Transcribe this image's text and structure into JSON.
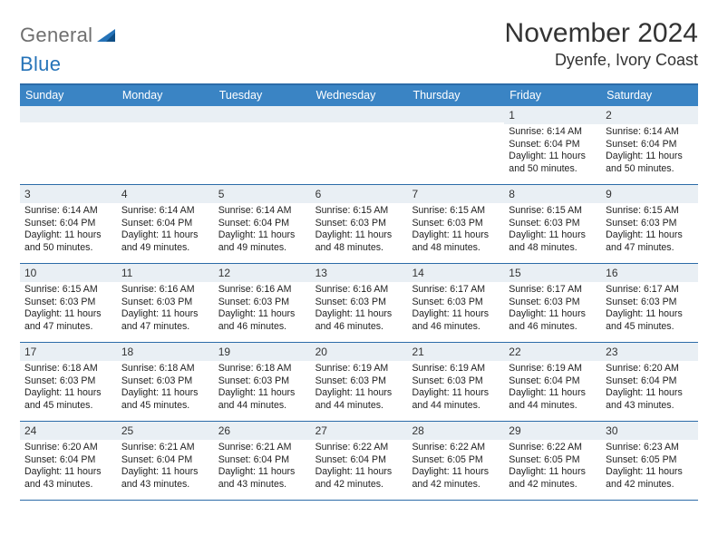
{
  "logo": {
    "gray": "General",
    "blue": "Blue"
  },
  "title": "November 2024",
  "location": "Dyenfe, Ivory Coast",
  "dow": [
    "Sunday",
    "Monday",
    "Tuesday",
    "Wednesday",
    "Thursday",
    "Friday",
    "Saturday"
  ],
  "colors": {
    "header_bar": "#3a84c4",
    "rule": "#2c6ba8",
    "daynum_bg": "#e9eff4",
    "logo_gray": "#6f6f6f",
    "logo_blue": "#2573b8"
  },
  "weeks": [
    [
      {
        "n": "",
        "sr": "",
        "ss": "",
        "d1": "",
        "d2": ""
      },
      {
        "n": "",
        "sr": "",
        "ss": "",
        "d1": "",
        "d2": ""
      },
      {
        "n": "",
        "sr": "",
        "ss": "",
        "d1": "",
        "d2": ""
      },
      {
        "n": "",
        "sr": "",
        "ss": "",
        "d1": "",
        "d2": ""
      },
      {
        "n": "",
        "sr": "",
        "ss": "",
        "d1": "",
        "d2": ""
      },
      {
        "n": "1",
        "sr": "Sunrise: 6:14 AM",
        "ss": "Sunset: 6:04 PM",
        "d1": "Daylight: 11 hours",
        "d2": "and 50 minutes."
      },
      {
        "n": "2",
        "sr": "Sunrise: 6:14 AM",
        "ss": "Sunset: 6:04 PM",
        "d1": "Daylight: 11 hours",
        "d2": "and 50 minutes."
      }
    ],
    [
      {
        "n": "3",
        "sr": "Sunrise: 6:14 AM",
        "ss": "Sunset: 6:04 PM",
        "d1": "Daylight: 11 hours",
        "d2": "and 50 minutes."
      },
      {
        "n": "4",
        "sr": "Sunrise: 6:14 AM",
        "ss": "Sunset: 6:04 PM",
        "d1": "Daylight: 11 hours",
        "d2": "and 49 minutes."
      },
      {
        "n": "5",
        "sr": "Sunrise: 6:14 AM",
        "ss": "Sunset: 6:04 PM",
        "d1": "Daylight: 11 hours",
        "d2": "and 49 minutes."
      },
      {
        "n": "6",
        "sr": "Sunrise: 6:15 AM",
        "ss": "Sunset: 6:03 PM",
        "d1": "Daylight: 11 hours",
        "d2": "and 48 minutes."
      },
      {
        "n": "7",
        "sr": "Sunrise: 6:15 AM",
        "ss": "Sunset: 6:03 PM",
        "d1": "Daylight: 11 hours",
        "d2": "and 48 minutes."
      },
      {
        "n": "8",
        "sr": "Sunrise: 6:15 AM",
        "ss": "Sunset: 6:03 PM",
        "d1": "Daylight: 11 hours",
        "d2": "and 48 minutes."
      },
      {
        "n": "9",
        "sr": "Sunrise: 6:15 AM",
        "ss": "Sunset: 6:03 PM",
        "d1": "Daylight: 11 hours",
        "d2": "and 47 minutes."
      }
    ],
    [
      {
        "n": "10",
        "sr": "Sunrise: 6:15 AM",
        "ss": "Sunset: 6:03 PM",
        "d1": "Daylight: 11 hours",
        "d2": "and 47 minutes."
      },
      {
        "n": "11",
        "sr": "Sunrise: 6:16 AM",
        "ss": "Sunset: 6:03 PM",
        "d1": "Daylight: 11 hours",
        "d2": "and 47 minutes."
      },
      {
        "n": "12",
        "sr": "Sunrise: 6:16 AM",
        "ss": "Sunset: 6:03 PM",
        "d1": "Daylight: 11 hours",
        "d2": "and 46 minutes."
      },
      {
        "n": "13",
        "sr": "Sunrise: 6:16 AM",
        "ss": "Sunset: 6:03 PM",
        "d1": "Daylight: 11 hours",
        "d2": "and 46 minutes."
      },
      {
        "n": "14",
        "sr": "Sunrise: 6:17 AM",
        "ss": "Sunset: 6:03 PM",
        "d1": "Daylight: 11 hours",
        "d2": "and 46 minutes."
      },
      {
        "n": "15",
        "sr": "Sunrise: 6:17 AM",
        "ss": "Sunset: 6:03 PM",
        "d1": "Daylight: 11 hours",
        "d2": "and 46 minutes."
      },
      {
        "n": "16",
        "sr": "Sunrise: 6:17 AM",
        "ss": "Sunset: 6:03 PM",
        "d1": "Daylight: 11 hours",
        "d2": "and 45 minutes."
      }
    ],
    [
      {
        "n": "17",
        "sr": "Sunrise: 6:18 AM",
        "ss": "Sunset: 6:03 PM",
        "d1": "Daylight: 11 hours",
        "d2": "and 45 minutes."
      },
      {
        "n": "18",
        "sr": "Sunrise: 6:18 AM",
        "ss": "Sunset: 6:03 PM",
        "d1": "Daylight: 11 hours",
        "d2": "and 45 minutes."
      },
      {
        "n": "19",
        "sr": "Sunrise: 6:18 AM",
        "ss": "Sunset: 6:03 PM",
        "d1": "Daylight: 11 hours",
        "d2": "and 44 minutes."
      },
      {
        "n": "20",
        "sr": "Sunrise: 6:19 AM",
        "ss": "Sunset: 6:03 PM",
        "d1": "Daylight: 11 hours",
        "d2": "and 44 minutes."
      },
      {
        "n": "21",
        "sr": "Sunrise: 6:19 AM",
        "ss": "Sunset: 6:03 PM",
        "d1": "Daylight: 11 hours",
        "d2": "and 44 minutes."
      },
      {
        "n": "22",
        "sr": "Sunrise: 6:19 AM",
        "ss": "Sunset: 6:04 PM",
        "d1": "Daylight: 11 hours",
        "d2": "and 44 minutes."
      },
      {
        "n": "23",
        "sr": "Sunrise: 6:20 AM",
        "ss": "Sunset: 6:04 PM",
        "d1": "Daylight: 11 hours",
        "d2": "and 43 minutes."
      }
    ],
    [
      {
        "n": "24",
        "sr": "Sunrise: 6:20 AM",
        "ss": "Sunset: 6:04 PM",
        "d1": "Daylight: 11 hours",
        "d2": "and 43 minutes."
      },
      {
        "n": "25",
        "sr": "Sunrise: 6:21 AM",
        "ss": "Sunset: 6:04 PM",
        "d1": "Daylight: 11 hours",
        "d2": "and 43 minutes."
      },
      {
        "n": "26",
        "sr": "Sunrise: 6:21 AM",
        "ss": "Sunset: 6:04 PM",
        "d1": "Daylight: 11 hours",
        "d2": "and 43 minutes."
      },
      {
        "n": "27",
        "sr": "Sunrise: 6:22 AM",
        "ss": "Sunset: 6:04 PM",
        "d1": "Daylight: 11 hours",
        "d2": "and 42 minutes."
      },
      {
        "n": "28",
        "sr": "Sunrise: 6:22 AM",
        "ss": "Sunset: 6:05 PM",
        "d1": "Daylight: 11 hours",
        "d2": "and 42 minutes."
      },
      {
        "n": "29",
        "sr": "Sunrise: 6:22 AM",
        "ss": "Sunset: 6:05 PM",
        "d1": "Daylight: 11 hours",
        "d2": "and 42 minutes."
      },
      {
        "n": "30",
        "sr": "Sunrise: 6:23 AM",
        "ss": "Sunset: 6:05 PM",
        "d1": "Daylight: 11 hours",
        "d2": "and 42 minutes."
      }
    ]
  ]
}
